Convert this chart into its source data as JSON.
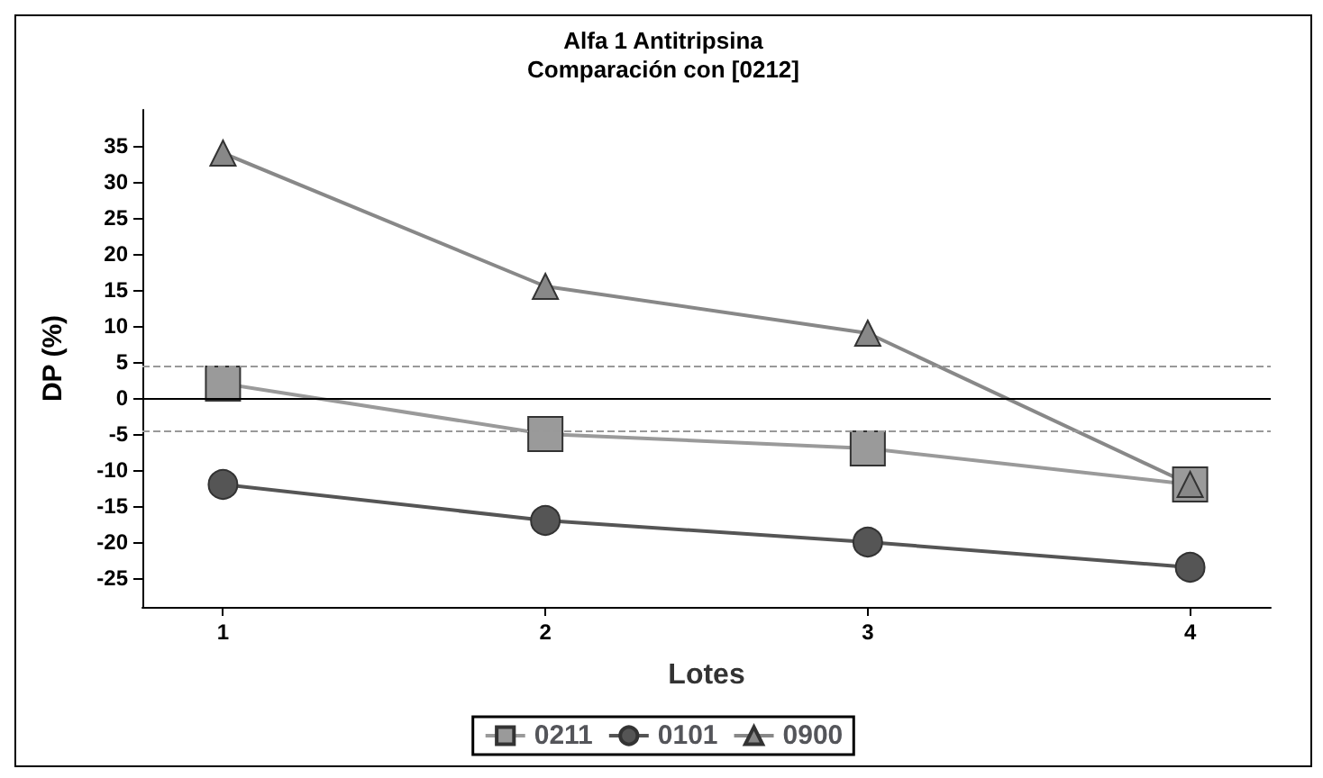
{
  "chart_data": {
    "type": "line",
    "title": "Alfa 1 Antitripsina",
    "subtitle": "Comparación con [0212]",
    "xlabel": "Lotes",
    "ylabel": "DP (%)",
    "x": [
      1,
      2,
      3,
      4
    ],
    "xlim": [
      0.75,
      4.25
    ],
    "xticks": [
      1,
      2,
      3,
      4
    ],
    "ylim": [
      -29,
      40
    ],
    "yticks": [
      -25,
      -20,
      -15,
      -10,
      -5,
      0,
      5,
      10,
      15,
      20,
      25,
      30,
      35
    ],
    "series": [
      {
        "name": "0211",
        "color": "#9a9a9a",
        "marker": "square",
        "values": [
          2,
          -5,
          -7,
          -12
        ]
      },
      {
        "name": "0101",
        "color": "#555555",
        "marker": "circle",
        "values": [
          -12,
          -17,
          -20,
          -23.5
        ]
      },
      {
        "name": "0900",
        "color": "#888888",
        "marker": "triangle",
        "values": [
          34,
          15.5,
          9,
          -12
        ]
      }
    ],
    "ref_lines": [
      {
        "axis": "y",
        "value": 4.5,
        "color": "#999999",
        "line_style": "dashed"
      },
      {
        "axis": "y",
        "value": 0,
        "color": "#000000",
        "line_style": "solid"
      },
      {
        "axis": "y",
        "value": -4.5,
        "color": "#999999",
        "line_style": "dashed"
      }
    ],
    "grid": false,
    "legend": "bottom"
  }
}
